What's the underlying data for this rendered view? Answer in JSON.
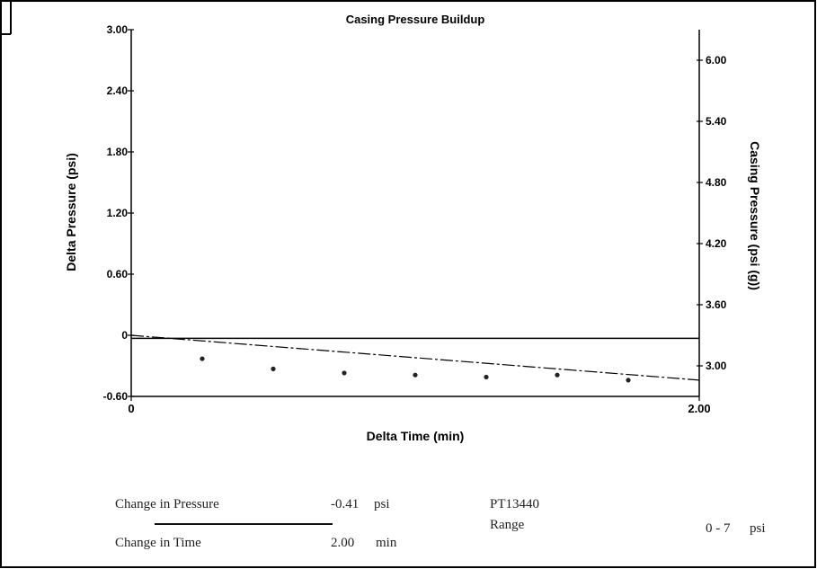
{
  "chart_data": {
    "type": "scatter",
    "title": "Casing Pressure Buildup",
    "xlabel": "Delta Time (min)",
    "ylabel": "Delta Pressure (psi)",
    "y2label": "Casing Pressure (psi (g))",
    "xlim": [
      0,
      2.0
    ],
    "ylim": [
      -0.6,
      3.0
    ],
    "y2lim": [
      2.7,
      6.3
    ],
    "x_ticks": [
      "0",
      "2.00"
    ],
    "y_ticks": [
      "3.00",
      "2.40",
      "1.80",
      "1.20",
      "0.60",
      "0",
      "-0.60"
    ],
    "y2_ticks": [
      "6.00",
      "5.40",
      "4.80",
      "4.20",
      "3.60",
      "3.00"
    ],
    "grid": false,
    "series": [
      {
        "values": [
          {
            "x": 0.25,
            "y": -0.23
          },
          {
            "x": 0.5,
            "y": -0.33
          },
          {
            "x": 0.75,
            "y": -0.37
          },
          {
            "x": 1.0,
            "y": -0.39
          },
          {
            "x": 1.25,
            "y": -0.41
          },
          {
            "x": 1.5,
            "y": -0.39
          },
          {
            "x": 1.75,
            "y": -0.44
          }
        ]
      }
    ],
    "trendline": {
      "from": {
        "x": 0,
        "y": 0
      },
      "to": {
        "x": 2.0,
        "y": -0.44
      }
    },
    "reference_line": {
      "y": -0.03
    }
  },
  "footer": {
    "change_pressure_label": "Change in Pressure",
    "change_pressure_value": "-0.41",
    "change_pressure_unit": "psi",
    "change_time_label": "Change in Time",
    "change_time_value": "2.00",
    "change_time_unit": "min",
    "sensor": "PT13440",
    "range_label": "Range",
    "range_value": "0 - 7",
    "range_unit": "psi"
  }
}
